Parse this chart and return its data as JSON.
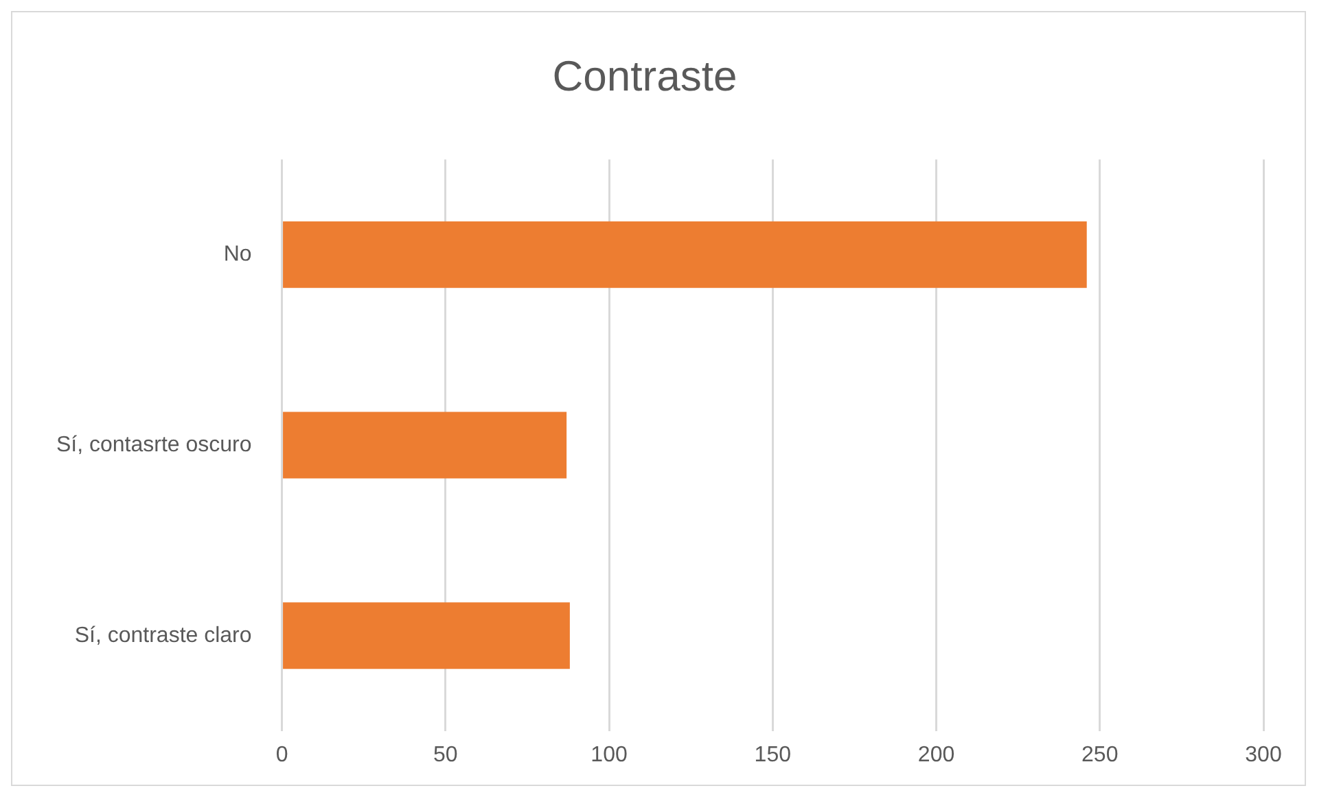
{
  "chart_data": {
    "type": "bar",
    "orientation": "horizontal",
    "title": "Contraste",
    "categories": [
      "No",
      "Sí, contasrte oscuro",
      "Sí, contraste claro"
    ],
    "values": [
      246,
      87,
      88
    ],
    "color": "#ed7d31",
    "xlim": [
      0,
      300
    ],
    "xticks": [
      0,
      50,
      100,
      150,
      200,
      250,
      300
    ],
    "grid": "x",
    "legend": false
  }
}
